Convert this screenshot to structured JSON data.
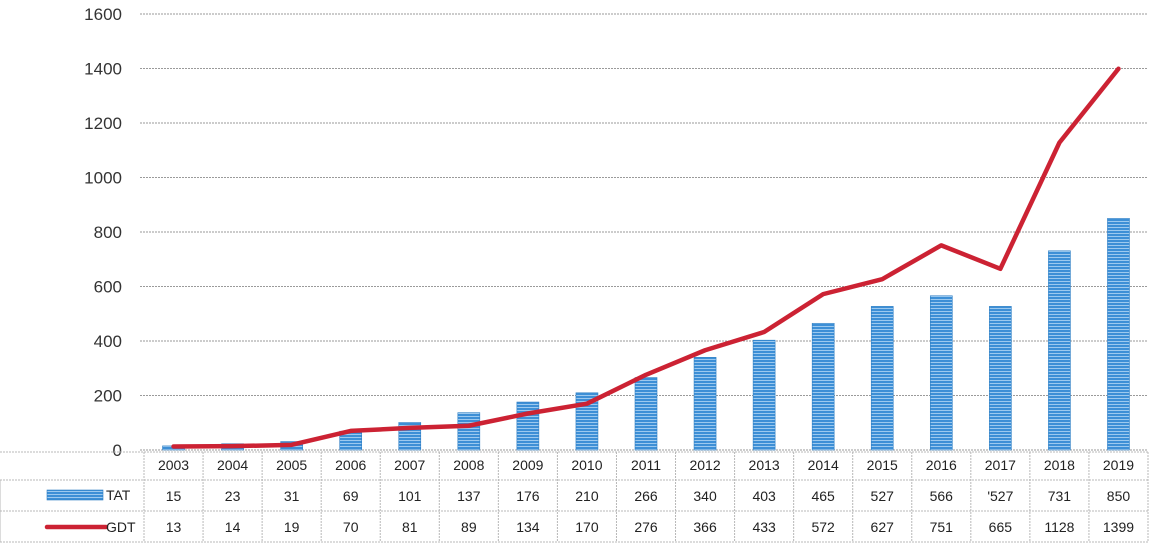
{
  "chart_data": {
    "type": "bar+line",
    "title": "",
    "xlabel": "",
    "ylabel": "",
    "ylim": [
      0,
      1600
    ],
    "yticks": [
      0,
      200,
      400,
      600,
      800,
      1000,
      1200,
      1400,
      1600
    ],
    "grid": true,
    "legend_placement": "data-table-left",
    "categories": [
      "2003",
      "2004",
      "2005",
      "2006",
      "2007",
      "2008",
      "2009",
      "2010",
      "2011",
      "2012",
      "2013",
      "2014",
      "2015",
      "2016",
      "2017",
      "2018",
      "2019"
    ],
    "series": [
      {
        "name": "TAT",
        "type": "bar",
        "color": "#3d8fd6",
        "values": [
          15,
          23,
          31,
          69,
          101,
          137,
          176,
          210,
          266,
          340,
          403,
          465,
          527,
          566,
          527,
          731,
          850
        ],
        "labels": [
          "15",
          "23",
          "31",
          "69",
          "101",
          "137",
          "176",
          "210",
          "266",
          "340",
          "403",
          "465",
          "527",
          "566",
          "'527",
          "731",
          "850"
        ]
      },
      {
        "name": "GDT",
        "type": "line",
        "color": "#cc2233",
        "values": [
          13,
          14,
          19,
          70,
          81,
          89,
          134,
          170,
          276,
          366,
          433,
          572,
          627,
          751,
          665,
          1128,
          1399
        ],
        "labels": [
          "13",
          "14",
          "19",
          "70",
          "81",
          "89",
          "134",
          "170",
          "276",
          "366",
          "433",
          "572",
          "627",
          "751",
          "665",
          "1128",
          "1399"
        ]
      }
    ]
  }
}
